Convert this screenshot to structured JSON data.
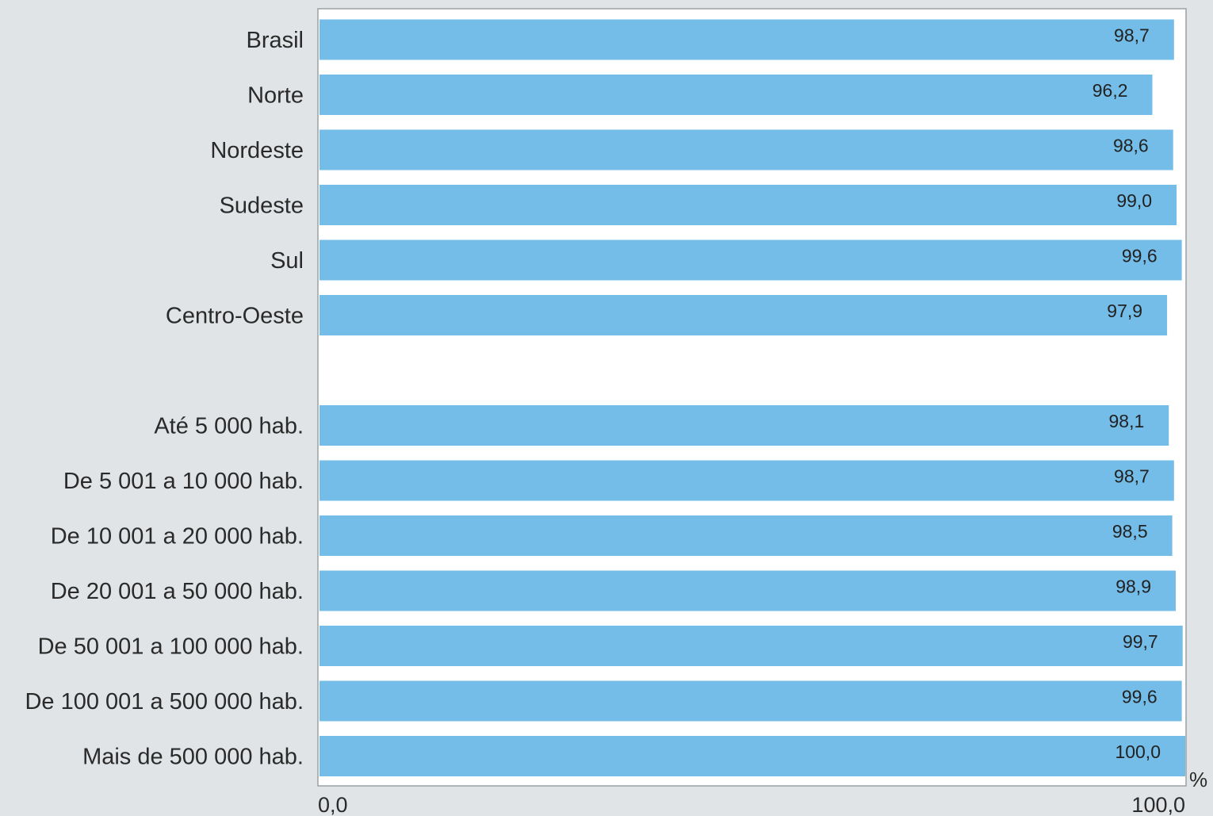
{
  "chart_data": {
    "type": "bar",
    "orientation": "horizontal",
    "categories": [
      "Brasil",
      "Norte",
      "Nordeste",
      "Sudeste",
      "Sul",
      "Centro-Oeste",
      "Até 5 000 hab.",
      "De 5 001 a 10 000 hab.",
      "De 10 001 a 20 000 hab.",
      "De 20 001 a 50 000 hab.",
      "De 50 001 a 100 000 hab.",
      "De 100 001 a 500 000 hab.",
      "Mais de 500 000 hab."
    ],
    "values": [
      98.7,
      96.2,
      98.6,
      99.0,
      99.6,
      97.9,
      98.1,
      98.7,
      98.5,
      98.9,
      99.7,
      99.6,
      100.0
    ],
    "value_labels": [
      "98,7",
      "96,2",
      "98,6",
      "99,0",
      "99,6",
      "97,9",
      "98,1",
      "98,7",
      "98,5",
      "98,9",
      "99,7",
      "99,6",
      "100,0"
    ],
    "groups": [
      {
        "name": "",
        "start": 0,
        "count": 6
      },
      {
        "name": "",
        "start": 6,
        "count": 7
      }
    ],
    "xlim": [
      0,
      100
    ],
    "x_ticks": [
      "0,0",
      "100,0"
    ],
    "x_unit": "%",
    "grid": false,
    "legend": "none",
    "title": "",
    "xlabel": "",
    "ylabel": ""
  },
  "colors": {
    "bar": "#74bde8",
    "plot_background": "#ffffff",
    "page_background": "#e1e4e6",
    "frame": "#9aa0a4"
  }
}
